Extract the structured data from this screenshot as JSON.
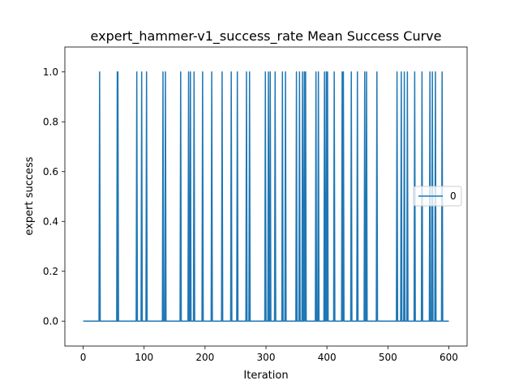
{
  "chart_data": {
    "type": "line",
    "title": "expert_hammer-v1_success_rate Mean Success Curve",
    "xlabel": "Iteration",
    "ylabel": "expert success",
    "xlim": [
      -30,
      630
    ],
    "ylim": [
      -0.1,
      1.1
    ],
    "xticks": [
      0,
      100,
      200,
      300,
      400,
      500,
      600
    ],
    "yticks": [
      0.0,
      0.2,
      0.4,
      0.6,
      0.8,
      1.0
    ],
    "xtick_labels": [
      "0",
      "100",
      "200",
      "300",
      "400",
      "500",
      "600"
    ],
    "ytick_labels": [
      "0.0",
      "0.2",
      "0.4",
      "0.6",
      "0.8",
      "1.0"
    ],
    "grid": false,
    "legend_position": "center-right",
    "color": "#1f77b4",
    "series": [
      {
        "name": "0",
        "x_start": 0,
        "x_end": 600,
        "baseline": 0,
        "success_iterations": [
          27,
          56,
          57,
          88,
          96,
          104,
          131,
          135,
          160,
          173,
          176,
          182,
          196,
          211,
          228,
          243,
          253,
          268,
          273,
          299,
          304,
          307,
          315,
          327,
          332,
          350,
          355,
          360,
          363,
          365,
          382,
          386,
          396,
          399,
          401,
          412,
          425,
          427,
          440,
          450,
          462,
          465,
          482,
          515,
          522,
          527,
          532,
          544,
          556,
          569,
          573,
          578,
          589
        ]
      }
    ]
  }
}
